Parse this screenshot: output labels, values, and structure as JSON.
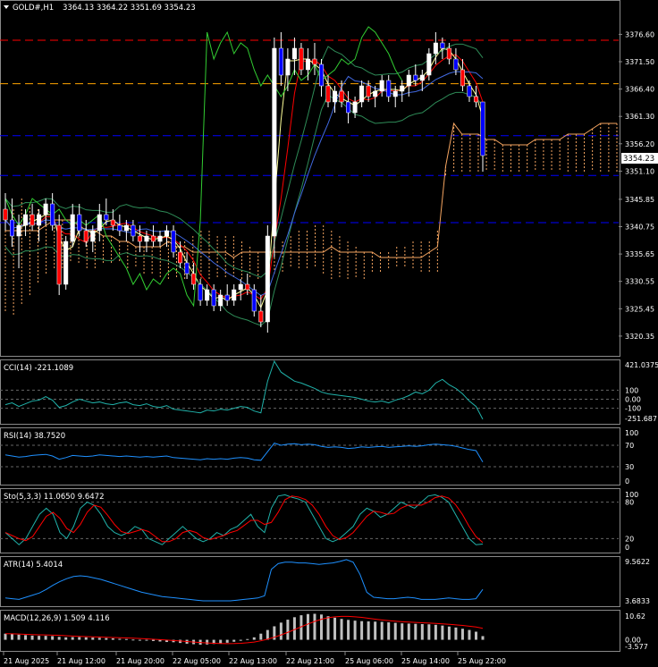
{
  "header": {
    "symbol": "GOLD#,H1",
    "ohlc": "3364.13 3364.22 3351.69 3354.23"
  },
  "price_axis": {
    "labels": [
      "3376.60",
      "3371.50",
      "3366.40",
      "3361.30",
      "3356.20",
      "3351.10",
      "3345.85",
      "3340.75",
      "3335.65",
      "3330.55",
      "3325.45",
      "3320.35"
    ],
    "current": "3354.23"
  },
  "indicators": {
    "cci": {
      "title": "CCI(14) -221.1089",
      "labels": [
        "421.0375",
        "100",
        "0.00",
        "-100",
        "-251.687"
      ]
    },
    "rsi": {
      "title": "RSI(14) 38.7520",
      "labels": [
        "100",
        "70",
        "30",
        "0"
      ]
    },
    "stoch": {
      "title": "Sto(5,3,3) 11.0650 9.6472",
      "labels": [
        "100",
        "80",
        "20",
        "0"
      ]
    },
    "atr": {
      "title": "ATR(14) 5.4014",
      "labels": [
        "9.5622",
        "3.6833"
      ]
    },
    "macd": {
      "title": "MACD(12,26,9) 1.509 4.116",
      "labels": [
        "10.62",
        "0.00",
        "-3.577"
      ]
    }
  },
  "time_axis": {
    "labels": [
      "21 Aug 2025",
      "21 Aug 12:00",
      "21 Aug 20:00",
      "22 Aug 05:00",
      "22 Aug 13:00",
      "22 Aug 21:00",
      "25 Aug 06:00",
      "25 Aug 14:00",
      "25 Aug 22:00"
    ]
  },
  "colors": {
    "background": "#000000",
    "bull": "#ffffff",
    "bear_up": "#ff0000",
    "bear_down": "#0000ff",
    "grid_red": "#ff0000",
    "grid_orange": "#ffa500",
    "grid_blue": "#0000ff",
    "ichimoku": "#f4a460",
    "cci": "#20b2aa",
    "rsi": "#1e90ff",
    "stoch_main": "#20b2aa",
    "stoch_signal": "#ff0000",
    "atr": "#1e90ff",
    "macd_hist": "#c0c0c0",
    "macd_signal": "#ff0000"
  },
  "chart_data": {
    "type": "candlestick",
    "title": "GOLD#,H1",
    "ylim": [
      3318,
      3380
    ],
    "levels": [
      {
        "price": 3375.5,
        "color": "red"
      },
      {
        "price": 3367.4,
        "color": "orange"
      },
      {
        "price": 3357.7,
        "color": "blue"
      },
      {
        "price": 3350.3,
        "color": "blue"
      },
      {
        "price": 3341.5,
        "color": "blue"
      }
    ],
    "candles": [
      [
        3344,
        3347,
        3340,
        3342
      ],
      [
        3342,
        3346,
        3337,
        3339
      ],
      [
        3339,
        3343,
        3333,
        3341
      ],
      [
        3341,
        3344,
        3339,
        3343
      ],
      [
        3343,
        3345,
        3340,
        3341
      ],
      [
        3341,
        3344,
        3338,
        3343
      ],
      [
        3343,
        3346,
        3341,
        3345
      ],
      [
        3345,
        3347,
        3340,
        3341
      ],
      [
        3341,
        3343,
        3328,
        3330
      ],
      [
        3330,
        3339,
        3329,
        3338
      ],
      [
        3338,
        3345,
        3337,
        3343
      ],
      [
        3343,
        3345,
        3339,
        3340
      ],
      [
        3340,
        3342,
        3337,
        3338
      ],
      [
        3338,
        3341,
        3336,
        3340
      ],
      [
        3340,
        3345,
        3338,
        3343
      ],
      [
        3343,
        3346,
        3341,
        3342
      ],
      [
        3342,
        3344,
        3340,
        3341
      ],
      [
        3341,
        3343,
        3339,
        3340
      ],
      [
        3340,
        3342,
        3338,
        3341
      ],
      [
        3341,
        3342,
        3338,
        3339
      ],
      [
        3339,
        3341,
        3336,
        3338
      ],
      [
        3338,
        3340,
        3336,
        3339
      ],
      [
        3339,
        3341,
        3337,
        3338
      ],
      [
        3338,
        3340,
        3337,
        3339
      ],
      [
        3339,
        3341,
        3337,
        3340
      ],
      [
        3340,
        3341,
        3335,
        3336
      ],
      [
        3336,
        3338,
        3333,
        3334
      ],
      [
        3334,
        3336,
        3331,
        3332
      ],
      [
        3332,
        3334,
        3329,
        3330
      ],
      [
        3330,
        3331,
        3326,
        3327
      ],
      [
        3327,
        3330,
        3326,
        3329
      ],
      [
        3329,
        3330,
        3325,
        3326
      ],
      [
        3326,
        3329,
        3325,
        3328
      ],
      [
        3328,
        3330,
        3326,
        3327
      ],
      [
        3327,
        3330,
        3326,
        3329
      ],
      [
        3329,
        3331,
        3327,
        3330
      ],
      [
        3330,
        3332,
        3328,
        3329
      ],
      [
        3329,
        3330,
        3324,
        3325
      ],
      [
        3325,
        3328,
        3322,
        3323
      ],
      [
        3323,
        3341,
        3321,
        3339
      ],
      [
        3339,
        3376,
        3335,
        3374
      ],
      [
        3374,
        3377,
        3367,
        3369
      ],
      [
        3369,
        3374,
        3366,
        3372
      ],
      [
        3372,
        3376,
        3369,
        3374
      ],
      [
        3374,
        3375,
        3369,
        3370
      ],
      [
        3370,
        3374,
        3368,
        3372
      ],
      [
        3372,
        3375,
        3369,
        3371
      ],
      [
        3371,
        3372,
        3365,
        3367
      ],
      [
        3367,
        3369,
        3363,
        3364
      ],
      [
        3364,
        3367,
        3362,
        3366
      ],
      [
        3366,
        3368,
        3363,
        3364
      ],
      [
        3364,
        3366,
        3360,
        3362
      ],
      [
        3362,
        3365,
        3361,
        3364
      ],
      [
        3364,
        3368,
        3363,
        3367
      ],
      [
        3367,
        3368,
        3364,
        3365
      ],
      [
        3365,
        3367,
        3363,
        3366
      ],
      [
        3366,
        3369,
        3365,
        3368
      ],
      [
        3368,
        3369,
        3364,
        3365
      ],
      [
        3365,
        3367,
        3363,
        3366
      ],
      [
        3366,
        3368,
        3364,
        3367
      ],
      [
        3367,
        3370,
        3365,
        3369
      ],
      [
        3369,
        3371,
        3367,
        3368
      ],
      [
        3368,
        3370,
        3366,
        3369
      ],
      [
        3369,
        3374,
        3368,
        3373
      ],
      [
        3373,
        3377,
        3371,
        3375
      ],
      [
        3375,
        3376,
        3372,
        3374
      ],
      [
        3374,
        3375,
        3371,
        3372
      ],
      [
        3372,
        3374,
        3369,
        3370
      ],
      [
        3370,
        3372,
        3366,
        3367
      ],
      [
        3367,
        3368,
        3364,
        3365
      ],
      [
        3365,
        3367,
        3363,
        3364
      ],
      [
        3364,
        3364,
        3351,
        3354
      ]
    ]
  }
}
